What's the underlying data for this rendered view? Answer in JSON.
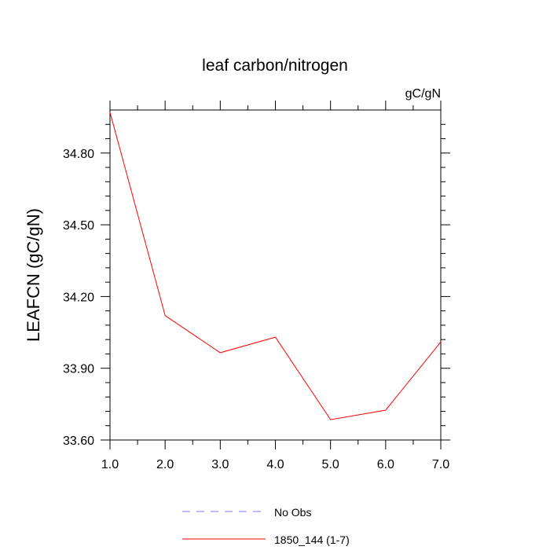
{
  "chart_data": {
    "type": "line",
    "title": "leaf carbon/nitrogen",
    "units_label": "gC/gN",
    "ylabel": "LEAFCN  (gC/gN)",
    "xlabel": "",
    "xlim": [
      1.0,
      7.0
    ],
    "ylim": [
      33.6,
      34.98
    ],
    "x_ticks": [
      "1.0",
      "2.0",
      "3.0",
      "4.0",
      "5.0",
      "6.0",
      "7.0"
    ],
    "y_ticks": [
      "33.60",
      "33.90",
      "34.20",
      "34.50",
      "34.80"
    ],
    "grid": false,
    "legend_position": "bottom",
    "series": [
      {
        "name": "1850_144 (1-7)",
        "color": "#ff0000",
        "dash": false,
        "x": [
          1,
          2,
          3,
          4,
          5,
          6,
          7
        ],
        "y": [
          34.97,
          34.12,
          33.965,
          34.03,
          33.685,
          33.725,
          34.01
        ]
      }
    ],
    "legend": [
      {
        "label": "No Obs",
        "color": "#7777ff",
        "dash": true
      },
      {
        "label": "1850_144 (1-7)",
        "color": "#ff0000",
        "dash": false
      }
    ]
  }
}
